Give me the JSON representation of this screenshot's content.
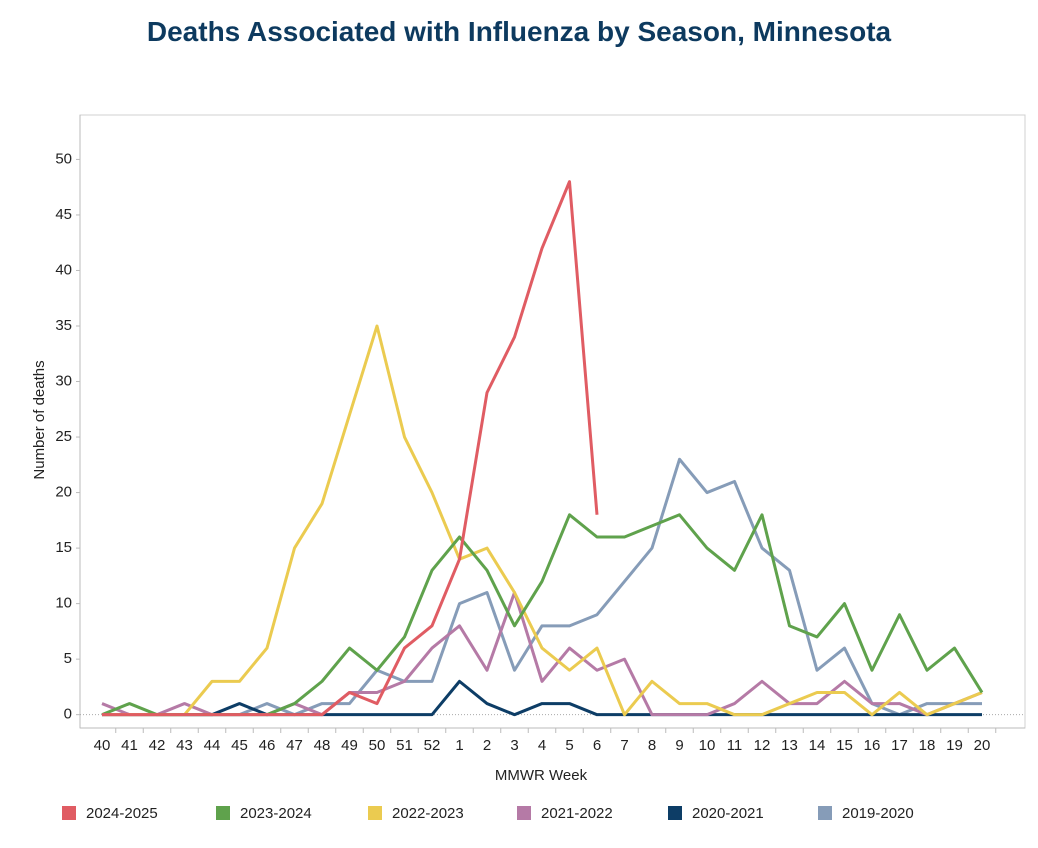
{
  "chart_data": {
    "type": "line",
    "title": "Deaths Associated with Influenza by Season, Minnesota",
    "x_label": "MMWR Week",
    "y_label": "Number of deaths",
    "categories": [
      "40",
      "41",
      "42",
      "43",
      "44",
      "45",
      "46",
      "47",
      "48",
      "49",
      "50",
      "51",
      "52",
      "1",
      "2",
      "3",
      "4",
      "5",
      "6",
      "7",
      "8",
      "9",
      "10",
      "11",
      "12",
      "13",
      "14",
      "15",
      "16",
      "17",
      "18",
      "19",
      "20"
    ],
    "ylim": [
      -1.2,
      54
    ],
    "yticks": [
      0,
      5,
      10,
      15,
      20,
      25,
      30,
      35,
      40,
      45,
      50
    ],
    "legend": "bottom",
    "series": [
      {
        "name": "2024-2025",
        "color": "#e05c63",
        "values": [
          0,
          0,
          0,
          0,
          0,
          0,
          0,
          0,
          0,
          2,
          1,
          6,
          8,
          14,
          29,
          34,
          42,
          48,
          18,
          null,
          null,
          null,
          null,
          null,
          null,
          null,
          null,
          null,
          null,
          null,
          null,
          null,
          null
        ]
      },
      {
        "name": "2023-2024",
        "color": "#5fa24c",
        "values": [
          0,
          1,
          0,
          0,
          0,
          0,
          0,
          1,
          3,
          6,
          4,
          7,
          13,
          16,
          13,
          8,
          12,
          18,
          16,
          16,
          17,
          18,
          15,
          13,
          18,
          8,
          7,
          10,
          4,
          9,
          4,
          6,
          2
        ]
      },
      {
        "name": "2022-2023",
        "color": "#ebcb50",
        "values": [
          0,
          0,
          0,
          0,
          3,
          3,
          6,
          15,
          19,
          27,
          35,
          25,
          20,
          14,
          15,
          11,
          6,
          4,
          6,
          0,
          3,
          1,
          1,
          0,
          0,
          1,
          2,
          2,
          0,
          2,
          0,
          1,
          2
        ]
      },
      {
        "name": "2021-2022",
        "color": "#b57aa6",
        "values": [
          1,
          0,
          0,
          1,
          0,
          0,
          0,
          1,
          0,
          2,
          2,
          3,
          6,
          8,
          4,
          11,
          3,
          6,
          4,
          5,
          0,
          0,
          0,
          1,
          3,
          1,
          1,
          3,
          1,
          1,
          0,
          1,
          2
        ]
      },
      {
        "name": "2020-2021",
        "color": "#0d3d66",
        "values": [
          0,
          0,
          0,
          0,
          0,
          1,
          0,
          0,
          0,
          0,
          0,
          0,
          0,
          3,
          1,
          0,
          1,
          1,
          0,
          0,
          0,
          0,
          0,
          0,
          0,
          0,
          0,
          0,
          0,
          0,
          0,
          0,
          0
        ]
      },
      {
        "name": "2019-2020",
        "color": "#869cb8",
        "values": [
          0,
          0,
          0,
          0,
          0,
          0,
          1,
          0,
          1,
          1,
          4,
          3,
          3,
          10,
          11,
          4,
          8,
          8,
          9,
          12,
          15,
          23,
          20,
          21,
          15,
          13,
          4,
          6,
          1,
          0,
          1,
          1,
          1
        ]
      }
    ]
  }
}
